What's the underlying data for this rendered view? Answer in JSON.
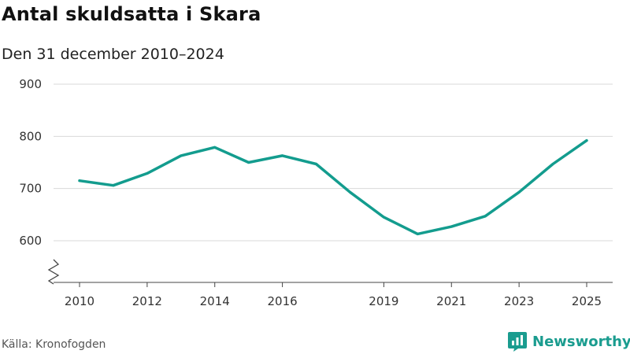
{
  "header": {
    "title": "Antal skuldsatta i Skara",
    "subtitle": "Den 31 december 2010–2024"
  },
  "footer": {
    "source": "Källa: Kronofogden",
    "brand": "Newsworthy"
  },
  "colors": {
    "line": "#139c8e",
    "grid": "#d9d9d9",
    "brand": "#1a9c8f"
  },
  "chart_data": {
    "type": "line",
    "title": "Antal skuldsatta i Skara",
    "subtitle": "Den 31 december 2010–2024",
    "xlabel": "",
    "ylabel": "",
    "x": [
      2010,
      2011,
      2012,
      2013,
      2014,
      2015,
      2016,
      2017,
      2018,
      2019,
      2020,
      2021,
      2022,
      2023,
      2024,
      2025
    ],
    "series": [
      {
        "name": "Antal skuldsatta",
        "values": [
          715,
          706,
          729,
          763,
          779,
          750,
          763,
          747,
          693,
          645,
          613,
          627,
          647,
          693,
          747,
          792
        ]
      }
    ],
    "xticks": [
      2010,
      2012,
      2014,
      2016,
      2019,
      2021,
      2023,
      2025
    ],
    "yticks": [
      600,
      700,
      800,
      900
    ],
    "ylim": [
      540,
      900
    ],
    "axis_break": true,
    "grid": true
  }
}
